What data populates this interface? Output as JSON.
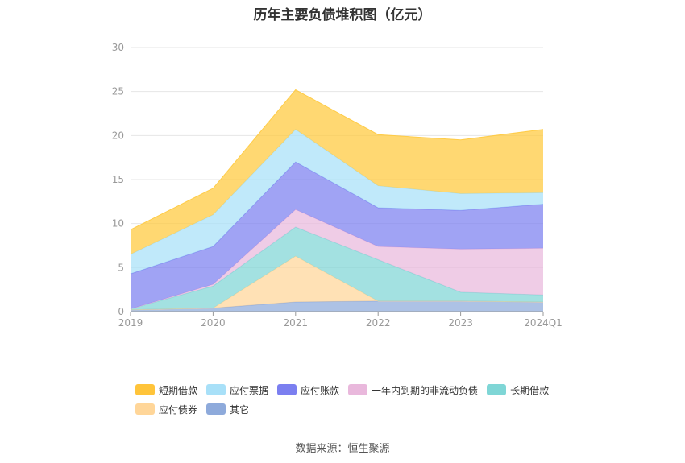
{
  "title": "历年主要负债堆积图（亿元）",
  "source": "数据来源：恒生聚源",
  "chart_data": {
    "type": "area",
    "stacked": true,
    "title": "历年主要负债堆积图（亿元）",
    "xlabel": "",
    "ylabel": "",
    "ylim": [
      0,
      30
    ],
    "yticks": [
      0,
      5,
      10,
      15,
      20,
      25,
      30
    ],
    "grid": true,
    "legend_position": "bottom",
    "categories": [
      "2019",
      "2020",
      "2021",
      "2022",
      "2023",
      "2024Q1"
    ],
    "series": [
      {
        "name": "其它",
        "color": "#8eaadb",
        "values": [
          0.2,
          0.4,
          1.1,
          1.2,
          1.2,
          1.1
        ]
      },
      {
        "name": "应付债券",
        "color": "#ffd699",
        "values": [
          0.0,
          0.0,
          5.2,
          0.0,
          0.0,
          0.0
        ]
      },
      {
        "name": "长期借款",
        "color": "#7fd6d6",
        "values": [
          0.1,
          2.5,
          3.3,
          4.7,
          1.0,
          0.8
        ]
      },
      {
        "name": "一年内到期的非流动负债",
        "color": "#e9b8dc",
        "values": [
          0.0,
          0.2,
          2.0,
          1.5,
          4.9,
          5.3
        ]
      },
      {
        "name": "应付账款",
        "color": "#7b7ff0",
        "values": [
          4.0,
          4.3,
          5.4,
          4.4,
          4.4,
          5.0
        ]
      },
      {
        "name": "应付票据",
        "color": "#a8e0f8",
        "values": [
          2.2,
          3.6,
          3.7,
          2.5,
          1.9,
          1.3
        ]
      },
      {
        "name": "短期借款",
        "color": "#ffc93c",
        "values": [
          2.8,
          3.0,
          4.5,
          5.8,
          6.1,
          7.2
        ]
      }
    ]
  },
  "legend": [
    {
      "name": "短期借款",
      "color": "#ffc43a"
    },
    {
      "name": "应付票据",
      "color": "#a8e0f8"
    },
    {
      "name": "应付账款",
      "color": "#7b7ff0"
    },
    {
      "name": "一年内到期的非流动负债",
      "color": "#e9b8dc"
    },
    {
      "name": "长期借款",
      "color": "#7fd6d6"
    },
    {
      "name": "应付债券",
      "color": "#ffd699"
    },
    {
      "name": "其它",
      "color": "#8eaadb"
    }
  ]
}
